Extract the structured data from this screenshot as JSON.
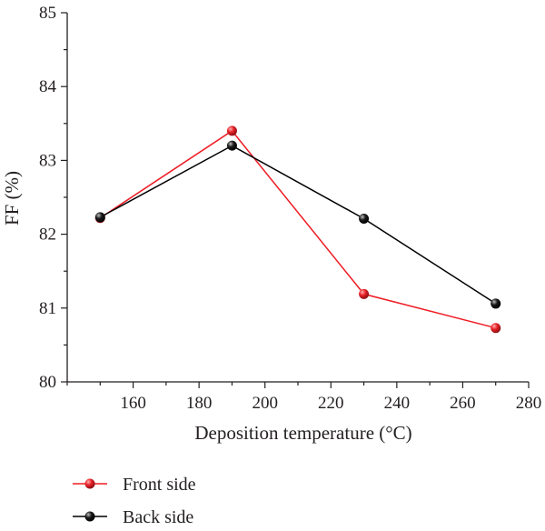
{
  "chart_data": {
    "type": "line",
    "title": "",
    "xlabel": "Deposition temperature (°C)",
    "ylabel": "FF (%)",
    "x": [
      150,
      190,
      230,
      270
    ],
    "xlim": [
      140,
      280
    ],
    "ylim": [
      80,
      85
    ],
    "xticks": [
      160,
      180,
      200,
      220,
      240,
      260,
      280
    ],
    "yticks": [
      80,
      81,
      82,
      83,
      84,
      85
    ],
    "grid": false,
    "legend_position": "bottom-left",
    "series": [
      {
        "name": "Front side",
        "color": "#ee1c24",
        "marker_color": "#e8232a",
        "values": [
          82.22,
          83.4,
          81.19,
          80.73
        ]
      },
      {
        "name": "Back side",
        "color": "#000000",
        "marker_color": "#111111",
        "values": [
          82.23,
          83.2,
          82.21,
          81.06
        ]
      }
    ]
  }
}
